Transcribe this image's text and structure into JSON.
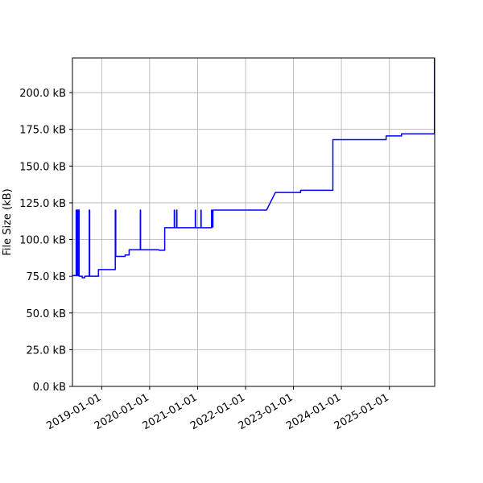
{
  "chart_data": {
    "type": "line",
    "title": "",
    "xlabel": "",
    "ylabel": "File Size (kB)",
    "xlim": [
      "2018-05-23",
      "2025-12-12"
    ],
    "ylim": [
      0,
      223.6
    ],
    "grid": true,
    "line_color": "#0000ff",
    "x_ticks": [
      "2019-01-01",
      "2020-01-01",
      "2021-01-01",
      "2022-01-01",
      "2023-01-01",
      "2024-01-01",
      "2025-01-01"
    ],
    "y_ticks": [
      0,
      25,
      50,
      75,
      100,
      125,
      150,
      175,
      200
    ],
    "y_tick_labels": [
      "0.0 kB",
      "25.0 kB",
      "50.0 kB",
      "75.0 kB",
      "100.0 kB",
      "125.0 kB",
      "150.0 kB",
      "175.0 kB",
      "200.0 kB"
    ],
    "series": [
      {
        "x": [
          "2018-05-23",
          "2018-06-20",
          "2018-06-20",
          "2018-06-23",
          "2018-06-23",
          "2018-06-27",
          "2018-06-27",
          "2018-07-05",
          "2018-07-05",
          "2018-07-08",
          "2018-07-08",
          "2018-07-13",
          "2018-07-13",
          "2018-08-05",
          "2018-08-05",
          "2018-08-25",
          "2018-08-25",
          "2018-09-28",
          "2018-09-28",
          "2018-10-01",
          "2018-10-01",
          "2018-12-07",
          "2018-12-07",
          "2019-04-14",
          "2019-04-14",
          "2019-04-18",
          "2019-04-18",
          "2019-06-28",
          "2019-06-28",
          "2019-07-29",
          "2019-07-29",
          "2019-10-22",
          "2019-10-22",
          "2019-10-24",
          "2019-10-24",
          "2020-03-13",
          "2020-03-13",
          "2020-04-25",
          "2020-04-25",
          "2020-07-07",
          "2020-07-07",
          "2020-07-09",
          "2020-07-09",
          "2020-07-25",
          "2020-07-25",
          "2020-07-27",
          "2020-07-27",
          "2020-12-14",
          "2020-12-14",
          "2020-12-16",
          "2020-12-16",
          "2021-01-26",
          "2021-01-26",
          "2021-01-28",
          "2021-01-28",
          "2021-04-17",
          "2021-04-17",
          "2021-04-20",
          "2021-04-20",
          "2021-04-27",
          "2021-04-27",
          "2022-06-10",
          "2022-08-16",
          "2023-02-24",
          "2023-02-24",
          "2023-10-28",
          "2023-10-28",
          "2024-12-07",
          "2024-12-07",
          "2025-04-03",
          "2025-04-03",
          "2025-12-10",
          "2025-12-10"
        ],
        "y": [
          75.5,
          75.5,
          120,
          120,
          75.5,
          75.5,
          120,
          120,
          75.5,
          75.5,
          120,
          120,
          75,
          75,
          74,
          74,
          75,
          75,
          120,
          120,
          75,
          75,
          79.5,
          79.5,
          120,
          120,
          88.5,
          88.5,
          89.5,
          89.5,
          93,
          93,
          120,
          120,
          93,
          93,
          92.7,
          92.7,
          108,
          108,
          120,
          120,
          108,
          108,
          120,
          120,
          108,
          108,
          120,
          120,
          108,
          108,
          120,
          120,
          108,
          108,
          120,
          120,
          108.5,
          108.5,
          120,
          120,
          132,
          132,
          133.5,
          133.5,
          168,
          168,
          170.5,
          170.5,
          172,
          172,
          223.6
        ]
      }
    ]
  }
}
